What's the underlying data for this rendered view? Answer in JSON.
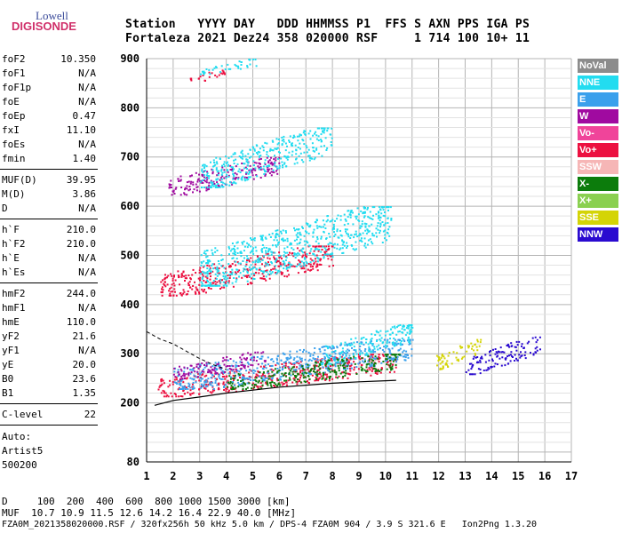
{
  "logo": {
    "line1": "Lowell",
    "line2": "DIGISONDE"
  },
  "header": {
    "row1": "Station   YYYY DAY   DDD HHMMSS P1  FFS S AXN PPS IGA PS",
    "row2": "Fortaleza 2021 Dez24 358 020000 RSF     1 714 100 10+ 11"
  },
  "params": [
    {
      "name": "foF2",
      "value": "10.350"
    },
    {
      "name": "foF1",
      "value": "N/A"
    },
    {
      "name": "foF1p",
      "value": "N/A"
    },
    {
      "name": "foE",
      "value": "N/A"
    },
    {
      "name": "foEp",
      "value": "0.47"
    },
    {
      "name": "fxI",
      "value": "11.10"
    },
    {
      "name": "foEs",
      "value": "N/A"
    },
    {
      "name": "fmin",
      "value": "1.40"
    },
    {
      "name": "MUF(D)",
      "value": "39.95"
    },
    {
      "name": "M(D)",
      "value": "3.86"
    },
    {
      "name": "D",
      "value": "N/A"
    },
    {
      "name": "h`F",
      "value": "210.0"
    },
    {
      "name": "h`F2",
      "value": "210.0"
    },
    {
      "name": "h`E",
      "value": "N/A"
    },
    {
      "name": "h`Es",
      "value": "N/A"
    },
    {
      "name": "hmF2",
      "value": "244.0"
    },
    {
      "name": "hmF1",
      "value": "N/A"
    },
    {
      "name": "hmE",
      "value": "110.0"
    },
    {
      "name": "yF2",
      "value": "21.6"
    },
    {
      "name": "yF1",
      "value": "N/A"
    },
    {
      "name": "yE",
      "value": "20.0"
    },
    {
      "name": "B0",
      "value": "23.6"
    },
    {
      "name": "B1",
      "value": "1.35"
    },
    {
      "name": "C-level",
      "value": "22"
    }
  ],
  "auto": {
    "line1": "Auto:",
    "line2": "Artist5",
    "line3": "500200"
  },
  "legend": [
    {
      "label": "NoVal",
      "color": "#8c8c8c"
    },
    {
      "label": "NNE",
      "color": "#22dcf0"
    },
    {
      "label": "E",
      "color": "#3aa0ec"
    },
    {
      "label": "W",
      "color": "#a00aa0"
    },
    {
      "label": "Vo-",
      "color": "#f0449a"
    },
    {
      "label": "Vo+",
      "color": "#ec1040"
    },
    {
      "label": "SSW",
      "color": "#f6b6b6"
    },
    {
      "label": "X-",
      "color": "#0c7c0c"
    },
    {
      "label": "X+",
      "color": "#8ad050"
    },
    {
      "label": "SSE",
      "color": "#d4d406"
    },
    {
      "label": "NNW",
      "color": "#2a0ad0"
    }
  ],
  "footer": {
    "distance": "D     100  200  400  600  800 1000 1500 3000 [km]",
    "muf": "MUF  10.7 10.9 11.5 12.6 14.2 16.4 22.9 40.0 [MHz]",
    "info": "FZA0M_2021358020000.RSF / 320fx256h 50 kHz 5.0 km / DPS-4 FZA0M 904 / 3.9 S 321.6 E   Ion2Png 1.3.20"
  },
  "chart_data": {
    "type": "scatter",
    "xlim": [
      1,
      17
    ],
    "ylim": [
      80,
      900
    ],
    "xticks": [
      1,
      2,
      3,
      4,
      5,
      6,
      7,
      8,
      9,
      10,
      11,
      12,
      13,
      14,
      15,
      16,
      17
    ],
    "yticks": [
      80,
      200,
      300,
      400,
      500,
      600,
      700,
      800,
      900
    ],
    "grid": true,
    "regions": [
      {
        "name": "F trace 1st hop",
        "color": "#ec1040",
        "x": [
          1.4,
          10.4
        ],
        "y": [
          215,
          300
        ]
      },
      {
        "name": "F trace 1st hop",
        "color": "#3aa0ec",
        "x": [
          2.0,
          11.0
        ],
        "y": [
          230,
          330
        ]
      },
      {
        "name": "F trace 1st hop",
        "color": "#a00aa0",
        "x": [
          2.0,
          5.5
        ],
        "y": [
          250,
          305
        ]
      },
      {
        "name": "F trace 1st hop",
        "color": "#22dcf0",
        "x": [
          7.5,
          11.0
        ],
        "y": [
          280,
          360
        ]
      },
      {
        "name": "F trace 1st hop",
        "color": "#0c7c0c",
        "x": [
          4.0,
          10.5
        ],
        "y": [
          230,
          300
        ]
      },
      {
        "name": "spread F",
        "color": "#d4d406",
        "x": [
          11.8,
          13.6
        ],
        "y": [
          270,
          330
        ]
      },
      {
        "name": "spread F",
        "color": "#2a0ad0",
        "x": [
          13.0,
          15.8
        ],
        "y": [
          260,
          335
        ]
      },
      {
        "name": "F trace 2nd hop",
        "color": "#ec1040",
        "x": [
          1.5,
          8.0
        ],
        "y": [
          420,
          520
        ]
      },
      {
        "name": "F trace 2nd hop",
        "color": "#22dcf0",
        "x": [
          3.0,
          10.2
        ],
        "y": [
          440,
          600
        ]
      },
      {
        "name": "F trace 3rd hop",
        "color": "#a00aa0",
        "x": [
          1.8,
          6.0
        ],
        "y": [
          625,
          700
        ]
      },
      {
        "name": "F trace 3rd hop",
        "color": "#22dcf0",
        "x": [
          3.0,
          8.0
        ],
        "y": [
          640,
          760
        ]
      },
      {
        "name": "F trace 4th hop",
        "color": "#ec1040",
        "x": [
          2.6,
          4.0
        ],
        "y": [
          850,
          880
        ]
      },
      {
        "name": "F trace 4th hop",
        "color": "#22dcf0",
        "x": [
          3.0,
          5.2
        ],
        "y": [
          870,
          900
        ]
      }
    ],
    "profile_line": [
      [
        1.3,
        195
      ],
      [
        2.0,
        205
      ],
      [
        3.0,
        212
      ],
      [
        4.0,
        220
      ],
      [
        5.0,
        226
      ],
      [
        6.0,
        232
      ],
      [
        7.0,
        236
      ],
      [
        8.0,
        240
      ],
      [
        9.0,
        243
      ],
      [
        10.0,
        245
      ],
      [
        10.4,
        246
      ]
    ],
    "dashed_line": [
      [
        1.0,
        345
      ],
      [
        1.5,
        330
      ],
      [
        2.0,
        320
      ],
      [
        2.5,
        305
      ],
      [
        3.0,
        290
      ],
      [
        3.5,
        278
      ],
      [
        4.0,
        268
      ]
    ]
  }
}
